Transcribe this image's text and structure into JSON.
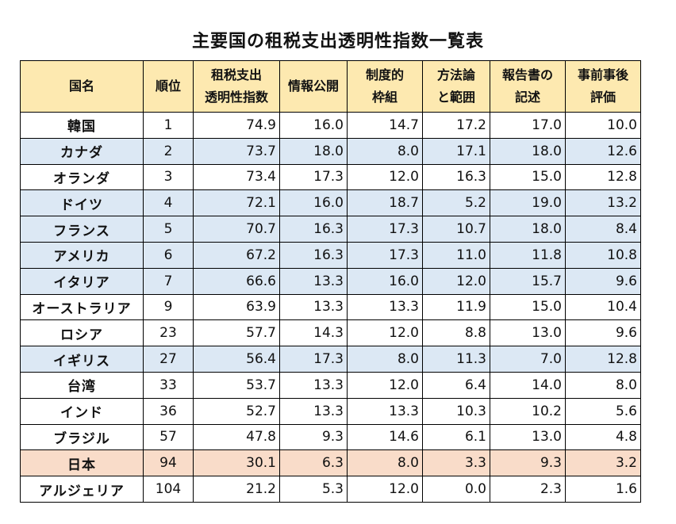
{
  "title": "主要国の租税支出透明性指数一覧表",
  "header": {
    "country": "国名",
    "rank": "順位",
    "index": [
      "租税支出",
      "透明性指数"
    ],
    "disclosure": "情報公開",
    "framework": [
      "制度的",
      "枠組"
    ],
    "method": [
      "方法論",
      "と範囲"
    ],
    "report": [
      "報告書の",
      "記述"
    ],
    "evaluation": [
      "事前事後",
      "評価"
    ]
  },
  "highlight_colors": {
    "header": "#fde9b0",
    "blue": "#dce8f4",
    "orange": "#f9dcc9"
  },
  "rows": [
    {
      "country": "韓国",
      "rank": "1",
      "index": "74.9",
      "disclosure": "16.0",
      "framework": "14.7",
      "method": "17.2",
      "report": "17.0",
      "evaluation": "10.0",
      "highlight": "none"
    },
    {
      "country": "カナダ",
      "rank": "2",
      "index": "73.7",
      "disclosure": "18.0",
      "framework": "8.0",
      "method": "17.1",
      "report": "18.0",
      "evaluation": "12.6",
      "highlight": "blue"
    },
    {
      "country": "オランダ",
      "rank": "3",
      "index": "73.4",
      "disclosure": "17.3",
      "framework": "12.0",
      "method": "16.3",
      "report": "15.0",
      "evaluation": "12.8",
      "highlight": "none"
    },
    {
      "country": "ドイツ",
      "rank": "4",
      "index": "72.1",
      "disclosure": "16.0",
      "framework": "18.7",
      "method": "5.2",
      "report": "19.0",
      "evaluation": "13.2",
      "highlight": "blue"
    },
    {
      "country": "フランス",
      "rank": "5",
      "index": "70.7",
      "disclosure": "16.3",
      "framework": "17.3",
      "method": "10.7",
      "report": "18.0",
      "evaluation": "8.4",
      "highlight": "blue"
    },
    {
      "country": "アメリカ",
      "rank": "6",
      "index": "67.2",
      "disclosure": "16.3",
      "framework": "17.3",
      "method": "11.0",
      "report": "11.8",
      "evaluation": "10.8",
      "highlight": "blue"
    },
    {
      "country": "イタリア",
      "rank": "7",
      "index": "66.6",
      "disclosure": "13.3",
      "framework": "16.0",
      "method": "12.0",
      "report": "15.7",
      "evaluation": "9.6",
      "highlight": "blue"
    },
    {
      "country": "オーストラリア",
      "rank": "9",
      "index": "63.9",
      "disclosure": "13.3",
      "framework": "13.3",
      "method": "11.9",
      "report": "15.0",
      "evaluation": "10.4",
      "highlight": "none"
    },
    {
      "country": "ロシア",
      "rank": "23",
      "index": "57.7",
      "disclosure": "14.3",
      "framework": "12.0",
      "method": "8.8",
      "report": "13.0",
      "evaluation": "9.6",
      "highlight": "none"
    },
    {
      "country": "イギリス",
      "rank": "27",
      "index": "56.4",
      "disclosure": "17.3",
      "framework": "8.0",
      "method": "11.3",
      "report": "7.0",
      "evaluation": "12.8",
      "highlight": "blue"
    },
    {
      "country": "台湾",
      "rank": "33",
      "index": "53.7",
      "disclosure": "13.3",
      "framework": "12.0",
      "method": "6.4",
      "report": "14.0",
      "evaluation": "8.0",
      "highlight": "none"
    },
    {
      "country": "インド",
      "rank": "36",
      "index": "52.7",
      "disclosure": "13.3",
      "framework": "13.3",
      "method": "10.3",
      "report": "10.2",
      "evaluation": "5.6",
      "highlight": "none"
    },
    {
      "country": "ブラジル",
      "rank": "57",
      "index": "47.8",
      "disclosure": "9.3",
      "framework": "14.6",
      "method": "6.1",
      "report": "13.0",
      "evaluation": "4.8",
      "highlight": "none"
    },
    {
      "country": "日本",
      "rank": "94",
      "index": "30.1",
      "disclosure": "6.3",
      "framework": "8.0",
      "method": "3.3",
      "report": "9.3",
      "evaluation": "3.2",
      "highlight": "orange"
    },
    {
      "country": "アルジェリア",
      "rank": "104",
      "index": "21.2",
      "disclosure": "5.3",
      "framework": "12.0",
      "method": "0.0",
      "report": "2.3",
      "evaluation": "1.6",
      "highlight": "none"
    }
  ]
}
